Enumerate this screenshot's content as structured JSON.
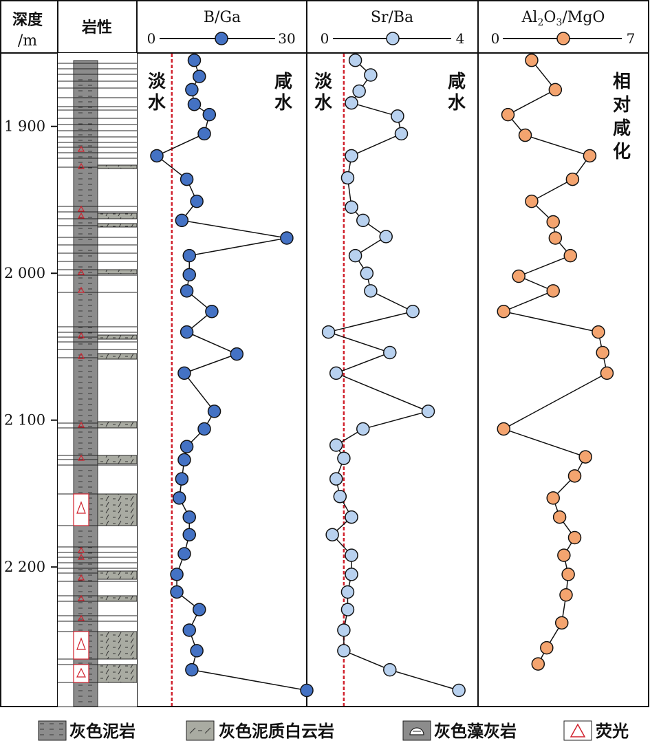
{
  "headers": {
    "depth": [
      "深度",
      "/m"
    ],
    "lithology": "岩性",
    "bga": "B/Ga",
    "srba": "Sr/Ba",
    "almg_parts": [
      "Al",
      "2",
      "O",
      "3",
      "/MgO"
    ]
  },
  "annotations": {
    "bga_fresh": [
      "淡",
      "水"
    ],
    "bga_salt": [
      "咸",
      "水"
    ],
    "srba_fresh": [
      "淡",
      "水"
    ],
    "srba_salt": [
      "咸",
      "水"
    ],
    "almg": [
      "相",
      "对",
      "咸",
      "化"
    ]
  },
  "legend": [
    {
      "label": "灰色泥岩",
      "pattern": "mudstone"
    },
    {
      "label": "灰色泥质白云岩",
      "pattern": "dolomite"
    },
    {
      "label": "灰色藻灰岩",
      "pattern": "algal"
    },
    {
      "label": "荧光",
      "pattern": "fluorescence"
    }
  ],
  "colors": {
    "bga_marker": "#4472c4",
    "srba_marker": "#b8d1ef",
    "almg_marker": "#f4a46f",
    "threshold_line": "#d0202c",
    "mudstone": "#8c8c8c",
    "dolomite": "#a9aba2"
  },
  "chart_data": {
    "type": "line",
    "y_axis": {
      "label": "深度/m",
      "range": [
        1850,
        2295
      ],
      "ticks": [
        1900,
        2000,
        2100,
        2200
      ],
      "tick_labels": [
        "1 900",
        "2 000",
        "2 100",
        "2 200"
      ],
      "reversed": true
    },
    "panels": [
      {
        "name": "B/Ga",
        "xlim": [
          0,
          30
        ],
        "x_tick_labels": [
          "0",
          "30"
        ],
        "threshold": 3,
        "series": [
          {
            "depth": 1855,
            "value": 7.5
          },
          {
            "depth": 1866,
            "value": 8.5
          },
          {
            "depth": 1875,
            "value": 7
          },
          {
            "depth": 1885,
            "value": 7.5
          },
          {
            "depth": 1892,
            "value": 10.5
          },
          {
            "depth": 1905,
            "value": 9.5
          },
          {
            "depth": 1920,
            "value": 0
          },
          {
            "depth": 1936,
            "value": 6
          },
          {
            "depth": 1951,
            "value": 8
          },
          {
            "depth": 1964,
            "value": 5
          },
          {
            "depth": 1976,
            "value": 26
          },
          {
            "depth": 1988,
            "value": 6.5
          },
          {
            "depth": 2001,
            "value": 6.5
          },
          {
            "depth": 2012,
            "value": 6
          },
          {
            "depth": 2026,
            "value": 11
          },
          {
            "depth": 2040,
            "value": 6
          },
          {
            "depth": 2055,
            "value": 16
          },
          {
            "depth": 2068,
            "value": 5.5
          },
          {
            "depth": 2094,
            "value": 11.5
          },
          {
            "depth": 2106,
            "value": 9.5
          },
          {
            "depth": 2118,
            "value": 6
          },
          {
            "depth": 2127,
            "value": 5.5
          },
          {
            "depth": 2140,
            "value": 5
          },
          {
            "depth": 2153,
            "value": 4.5
          },
          {
            "depth": 2166,
            "value": 6.5
          },
          {
            "depth": 2178,
            "value": 6.5
          },
          {
            "depth": 2191,
            "value": 5.5
          },
          {
            "depth": 2205,
            "value": 4
          },
          {
            "depth": 2217,
            "value": 4
          },
          {
            "depth": 2229,
            "value": 8.5
          },
          {
            "depth": 2243,
            "value": 6.5
          },
          {
            "depth": 2257,
            "value": 8
          },
          {
            "depth": 2270,
            "value": 7
          },
          {
            "depth": 2284,
            "value": 30
          }
        ]
      },
      {
        "name": "Sr/Ba",
        "xlim": [
          0,
          4
        ],
        "x_tick_labels": [
          "0",
          "4"
        ],
        "threshold": 0.5,
        "series": [
          {
            "depth": 1855,
            "value": 0.8
          },
          {
            "depth": 1865,
            "value": 1.2
          },
          {
            "depth": 1876,
            "value": 0.9
          },
          {
            "depth": 1884,
            "value": 0.7
          },
          {
            "depth": 1893,
            "value": 1.9
          },
          {
            "depth": 1905,
            "value": 2.0
          },
          {
            "depth": 1920,
            "value": 0.7
          },
          {
            "depth": 1935,
            "value": 0.6
          },
          {
            "depth": 1955,
            "value": 0.7
          },
          {
            "depth": 1964,
            "value": 1.0
          },
          {
            "depth": 1975,
            "value": 1.6
          },
          {
            "depth": 1988,
            "value": 0.8
          },
          {
            "depth": 2000,
            "value": 1.1
          },
          {
            "depth": 2012,
            "value": 1.2
          },
          {
            "depth": 2026,
            "value": 2.3
          },
          {
            "depth": 2040,
            "value": 0.1
          },
          {
            "depth": 2054,
            "value": 1.7
          },
          {
            "depth": 2068,
            "value": 0.3
          },
          {
            "depth": 2094,
            "value": 2.7
          },
          {
            "depth": 2106,
            "value": 1.0
          },
          {
            "depth": 2117,
            "value": 0.3
          },
          {
            "depth": 2126,
            "value": 0.5
          },
          {
            "depth": 2140,
            "value": 0.3
          },
          {
            "depth": 2152,
            "value": 0.4
          },
          {
            "depth": 2166,
            "value": 0.7
          },
          {
            "depth": 2178,
            "value": 0.2
          },
          {
            "depth": 2192,
            "value": 0.7
          },
          {
            "depth": 2205,
            "value": 0.7
          },
          {
            "depth": 2217,
            "value": 0.6
          },
          {
            "depth": 2229,
            "value": 0.6
          },
          {
            "depth": 2243,
            "value": 0.5
          },
          {
            "depth": 2257,
            "value": 0.5
          },
          {
            "depth": 2270,
            "value": 1.7
          },
          {
            "depth": 2284,
            "value": 3.5
          }
        ]
      },
      {
        "name": "Al2O3/MgO",
        "xlim": [
          0,
          7
        ],
        "x_tick_labels": [
          "0",
          "7"
        ],
        "series": [
          {
            "depth": 1855,
            "value": 1.5
          },
          {
            "depth": 1875,
            "value": 2.6
          },
          {
            "depth": 1892,
            "value": 0.4
          },
          {
            "depth": 1906,
            "value": 1.2
          },
          {
            "depth": 1920,
            "value": 4.2
          },
          {
            "depth": 1936,
            "value": 3.4
          },
          {
            "depth": 1951,
            "value": 1.5
          },
          {
            "depth": 1965,
            "value": 2.5
          },
          {
            "depth": 1976,
            "value": 2.6
          },
          {
            "depth": 1988,
            "value": 3.3
          },
          {
            "depth": 2002,
            "value": 0.9
          },
          {
            "depth": 2012,
            "value": 2.5
          },
          {
            "depth": 2026,
            "value": 0.2
          },
          {
            "depth": 2040,
            "value": 4.6
          },
          {
            "depth": 2054,
            "value": 4.8
          },
          {
            "depth": 2068,
            "value": 5.0
          },
          {
            "depth": 2106,
            "value": 0.2
          },
          {
            "depth": 2125,
            "value": 4.0
          },
          {
            "depth": 2138,
            "value": 3.5
          },
          {
            "depth": 2153,
            "value": 2.5
          },
          {
            "depth": 2166,
            "value": 2.8
          },
          {
            "depth": 2180,
            "value": 3.5
          },
          {
            "depth": 2192,
            "value": 3.0
          },
          {
            "depth": 2205,
            "value": 3.2
          },
          {
            "depth": 2219,
            "value": 3.1
          },
          {
            "depth": 2238,
            "value": 2.9
          },
          {
            "depth": 2255,
            "value": 2.2
          },
          {
            "depth": 2266,
            "value": 1.8
          }
        ]
      }
    ]
  }
}
